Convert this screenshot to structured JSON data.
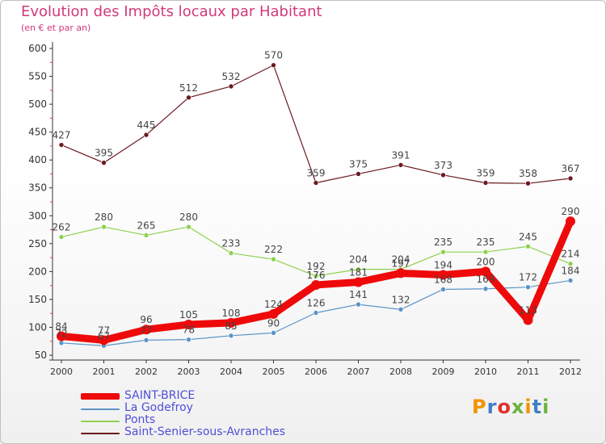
{
  "chart_data": {
    "type": "line",
    "title": "Evolution des Impôts locaux par Habitant",
    "subtitle": "(en € et par an)",
    "xlabel": "",
    "ylabel": "",
    "ylim": [
      50,
      600
    ],
    "yticks": [
      50,
      100,
      150,
      200,
      250,
      300,
      350,
      400,
      450,
      500,
      550,
      600
    ],
    "categories": [
      "2000",
      "2001",
      "2002",
      "2003",
      "2004",
      "2005",
      "2006",
      "2007",
      "2008",
      "2009",
      "2010",
      "2011",
      "2012"
    ],
    "series": [
      {
        "name": "Saint-Senier-sous-Avranches",
        "color": "#6b1a1f",
        "values": [
          427,
          395,
          445,
          512,
          532,
          570,
          359,
          375,
          391,
          373,
          359,
          358,
          367
        ]
      },
      {
        "name": "Ponts",
        "color": "#8fd14f",
        "values": [
          262,
          280,
          265,
          280,
          233,
          222,
          192,
          204,
          204,
          235,
          235,
          245,
          214
        ]
      },
      {
        "name": "La Godefroy",
        "color": "#5b93c6",
        "values": [
          72,
          67,
          77,
          78,
          85,
          90,
          126,
          141,
          132,
          168,
          169,
          172,
          184
        ]
      },
      {
        "name": "SAINT-BRICE",
        "color": "#ee0a0a",
        "values": [
          84,
          77,
          96,
          105,
          108,
          124,
          176,
          181,
          197,
          194,
          200,
          113,
          290
        ]
      }
    ],
    "legend": [
      "SAINT-BRICE",
      "La Godefroy",
      "Ponts",
      "Saint-Senier-sous-Avranches"
    ],
    "legend_position": "bottom",
    "grid": false
  },
  "logo": {
    "text": "Proxiti",
    "colors": [
      "#f39200",
      "#3f7fc6",
      "#e0312b",
      "#6cb33e",
      "#f39200",
      "#3f7fc6",
      "#6cb33e"
    ]
  }
}
